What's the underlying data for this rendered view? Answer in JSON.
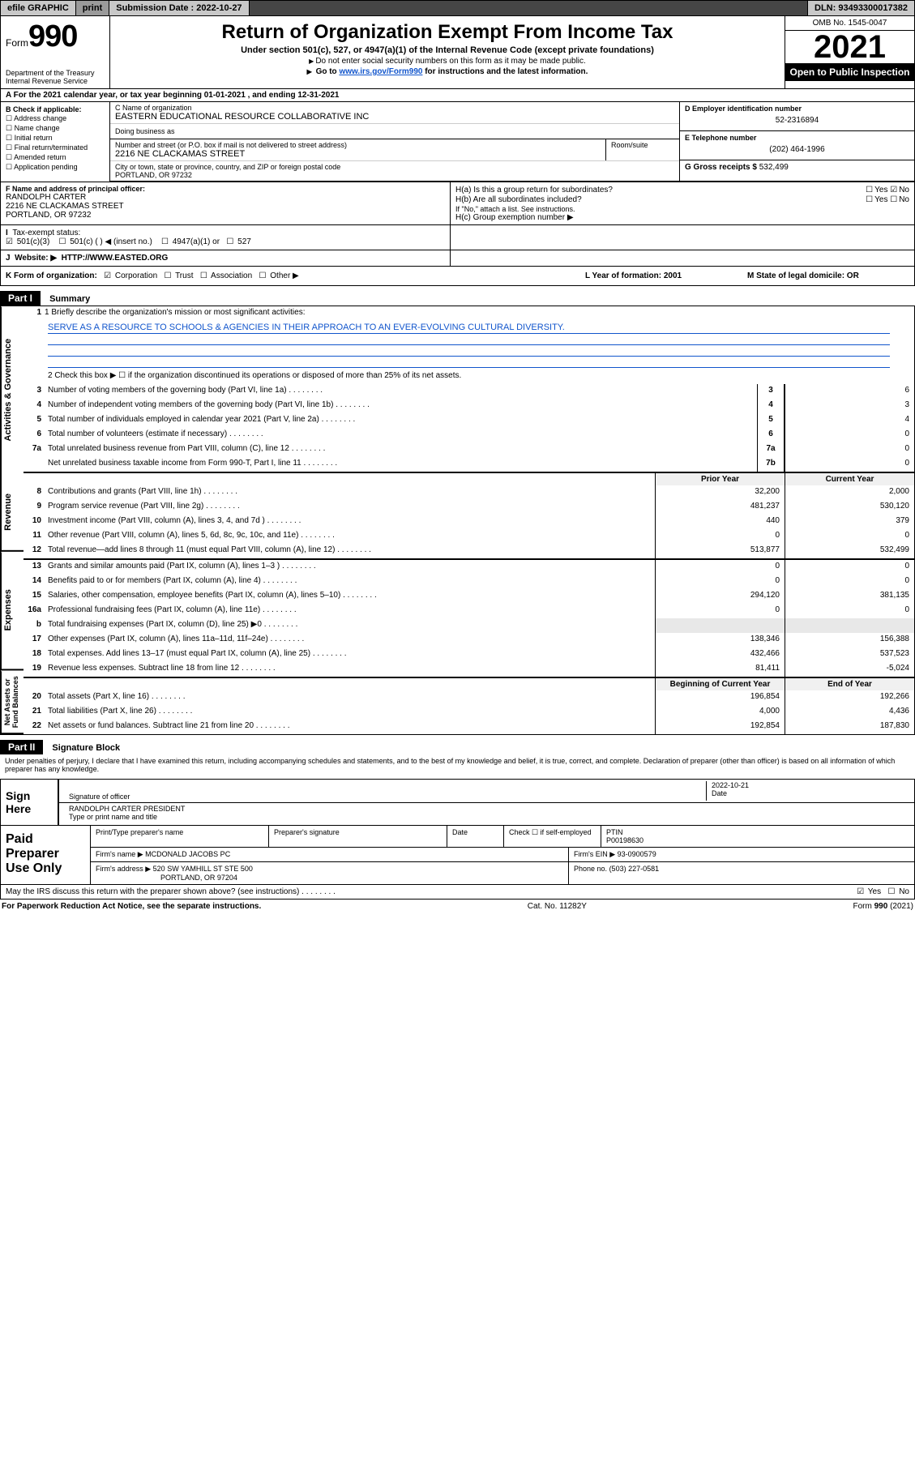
{
  "topbar": {
    "efile": "efile GRAPHIC",
    "print": "print",
    "subdate_label": "Submission Date :",
    "subdate": "2022-10-27",
    "dln_label": "DLN:",
    "dln": "93493300017382"
  },
  "header": {
    "form_word": "Form",
    "form_num": "990",
    "dept": "Department of the Treasury\nInternal Revenue Service",
    "title": "Return of Organization Exempt From Income Tax",
    "sub": "Under section 501(c), 527, or 4947(a)(1) of the Internal Revenue Code (except private foundations)",
    "note1": "Do not enter social security numbers on this form as it may be made public.",
    "note2_pre": "Go to ",
    "note2_link": "www.irs.gov/Form990",
    "note2_post": " for instructions and the latest information.",
    "omb": "OMB No. 1545-0047",
    "year": "2021",
    "open_pub": "Open to Public Inspection"
  },
  "period": {
    "line": "For the 2021 calendar year, or tax year beginning 01-01-2021   , and ending 12-31-2021"
  },
  "colB": {
    "header": "B Check if applicable:",
    "opts": [
      "Address change",
      "Name change",
      "Initial return",
      "Final return/terminated",
      "Amended return",
      "Application pending"
    ]
  },
  "colC": {
    "name_label": "C Name of organization",
    "name": "EASTERN EDUCATIONAL RESOURCE COLLABORATIVE INC",
    "dba_label": "Doing business as",
    "addr_label": "Number and street (or P.O. box if mail is not delivered to street address)",
    "addr": "2216 NE CLACKAMAS STREET",
    "room_label": "Room/suite",
    "city_label": "City or town, state or province, country, and ZIP or foreign postal code",
    "city": "PORTLAND, OR  97232"
  },
  "colD": {
    "label": "D Employer identification number",
    "val": "52-2316894"
  },
  "colE": {
    "label": "E Telephone number",
    "val": "(202) 464-1996"
  },
  "colG": {
    "label": "G Gross receipts $",
    "val": "532,499"
  },
  "boxF": {
    "label": "F Name and address of principal officer:",
    "name": "RANDOLPH CARTER",
    "addr": "2216 NE CLACKAMAS STREET",
    "city": "PORTLAND, OR  97232"
  },
  "boxH": {
    "a": "H(a)  Is this a group return for subordinates?",
    "b": "H(b)  Are all subordinates included?",
    "note": "If \"No,\" attach a list. See instructions.",
    "c": "H(c)  Group exemption number ▶",
    "yes": "Yes",
    "no": "No"
  },
  "rowI": {
    "label": "Tax-exempt status:",
    "opts": [
      "501(c)(3)",
      "501(c) (  ) ◀ (insert no.)",
      "4947(a)(1) or",
      "527"
    ]
  },
  "rowJ": {
    "label": "Website: ▶",
    "val": "HTTP://WWW.EASTED.ORG"
  },
  "rowK": {
    "label": "K Form of organization:",
    "opts": [
      "Corporation",
      "Trust",
      "Association",
      "Other ▶"
    ],
    "L": "L Year of formation: 2001",
    "M": "M State of legal domicile: OR"
  },
  "part1": {
    "bar": "Part I",
    "title": "Summary"
  },
  "summary": {
    "tabs": [
      "Activities & Governance",
      "Revenue",
      "Expenses",
      "Net Assets or Fund Balances"
    ],
    "mission_label": "1  Briefly describe the organization's mission or most significant activities:",
    "mission": "SERVE AS A RESOURCE TO SCHOOLS & AGENCIES IN THEIR APPROACH TO AN EVER-EVOLVING CULTURAL DIVERSITY.",
    "line2": "2  Check this box ▶ ☐  if the organization discontinued its operations or disposed of more than 25% of its net assets.",
    "gov_lines": [
      {
        "n": "3",
        "t": "Number of voting members of the governing body (Part VI, line 1a)",
        "box": "3",
        "v": "6"
      },
      {
        "n": "4",
        "t": "Number of independent voting members of the governing body (Part VI, line 1b)",
        "box": "4",
        "v": "3"
      },
      {
        "n": "5",
        "t": "Total number of individuals employed in calendar year 2021 (Part V, line 2a)",
        "box": "5",
        "v": "4"
      },
      {
        "n": "6",
        "t": "Total number of volunteers (estimate if necessary)",
        "box": "6",
        "v": "0"
      },
      {
        "n": "7a",
        "t": "Total unrelated business revenue from Part VIII, column (C), line 12",
        "box": "7a",
        "v": "0"
      },
      {
        "n": "",
        "t": "Net unrelated business taxable income from Form 990-T, Part I, line 11",
        "box": "7b",
        "v": "0"
      }
    ],
    "col_prior": "Prior Year",
    "col_curr": "Current Year",
    "col_boy": "Beginning of Current Year",
    "col_eoy": "End of Year",
    "rev_lines": [
      {
        "n": "8",
        "t": "Contributions and grants (Part VIII, line 1h)",
        "p": "32,200",
        "c": "2,000"
      },
      {
        "n": "9",
        "t": "Program service revenue (Part VIII, line 2g)",
        "p": "481,237",
        "c": "530,120"
      },
      {
        "n": "10",
        "t": "Investment income (Part VIII, column (A), lines 3, 4, and 7d )",
        "p": "440",
        "c": "379"
      },
      {
        "n": "11",
        "t": "Other revenue (Part VIII, column (A), lines 5, 6d, 8c, 9c, 10c, and 11e)",
        "p": "0",
        "c": "0"
      },
      {
        "n": "12",
        "t": "Total revenue—add lines 8 through 11 (must equal Part VIII, column (A), line 12)",
        "p": "513,877",
        "c": "532,499"
      }
    ],
    "exp_lines": [
      {
        "n": "13",
        "t": "Grants and similar amounts paid (Part IX, column (A), lines 1–3 )",
        "p": "0",
        "c": "0"
      },
      {
        "n": "14",
        "t": "Benefits paid to or for members (Part IX, column (A), line 4)",
        "p": "0",
        "c": "0"
      },
      {
        "n": "15",
        "t": "Salaries, other compensation, employee benefits (Part IX, column (A), lines 5–10)",
        "p": "294,120",
        "c": "381,135"
      },
      {
        "n": "16a",
        "t": "Professional fundraising fees (Part IX, column (A), line 11e)",
        "p": "0",
        "c": "0"
      },
      {
        "n": "b",
        "t": "Total fundraising expenses (Part IX, column (D), line 25) ▶0",
        "p": "",
        "c": "",
        "gray": true
      },
      {
        "n": "17",
        "t": "Other expenses (Part IX, column (A), lines 11a–11d, 11f–24e)",
        "p": "138,346",
        "c": "156,388"
      },
      {
        "n": "18",
        "t": "Total expenses. Add lines 13–17 (must equal Part IX, column (A), line 25)",
        "p": "432,466",
        "c": "537,523"
      },
      {
        "n": "19",
        "t": "Revenue less expenses. Subtract line 18 from line 12",
        "p": "81,411",
        "c": "-5,024"
      }
    ],
    "net_lines": [
      {
        "n": "20",
        "t": "Total assets (Part X, line 16)",
        "p": "196,854",
        "c": "192,266"
      },
      {
        "n": "21",
        "t": "Total liabilities (Part X, line 26)",
        "p": "4,000",
        "c": "4,436"
      },
      {
        "n": "22",
        "t": "Net assets or fund balances. Subtract line 21 from line 20",
        "p": "192,854",
        "c": "187,830"
      }
    ]
  },
  "part2": {
    "bar": "Part II",
    "title": "Signature Block"
  },
  "sig": {
    "decl": "Under penalties of perjury, I declare that I have examined this return, including accompanying schedules and statements, and to the best of my knowledge and belief, it is true, correct, and complete. Declaration of preparer (other than officer) is based on all information of which preparer has any knowledge.",
    "sign_here": "Sign Here",
    "sig_officer": "Signature of officer",
    "date": "2022-10-21",
    "date_label": "Date",
    "name": "RANDOLPH CARTER  PRESIDENT",
    "name_label": "Type or print name and title"
  },
  "paid": {
    "label": "Paid Preparer Use Only",
    "h1": "Print/Type preparer's name",
    "h2": "Preparer's signature",
    "h3": "Date",
    "h4_pre": "Check ☐ if self-employed",
    "h5": "PTIN",
    "ptin": "P00198630",
    "firm_label": "Firm's name   ▶",
    "firm": "MCDONALD JACOBS PC",
    "ein_label": "Firm's EIN ▶",
    "ein": "93-0900579",
    "addr_label": "Firm's address ▶",
    "addr": "520 SW YAMHILL ST STE 500",
    "city": "PORTLAND, OR  97204",
    "phone_label": "Phone no.",
    "phone": "(503) 227-0581"
  },
  "footer": {
    "discuss": "May the IRS discuss this return with the preparer shown above? (see instructions)",
    "yes": "Yes",
    "no": "No",
    "paperwork": "For Paperwork Reduction Act Notice, see the separate instructions.",
    "cat": "Cat. No. 11282Y",
    "form": "Form 990 (2021)"
  }
}
